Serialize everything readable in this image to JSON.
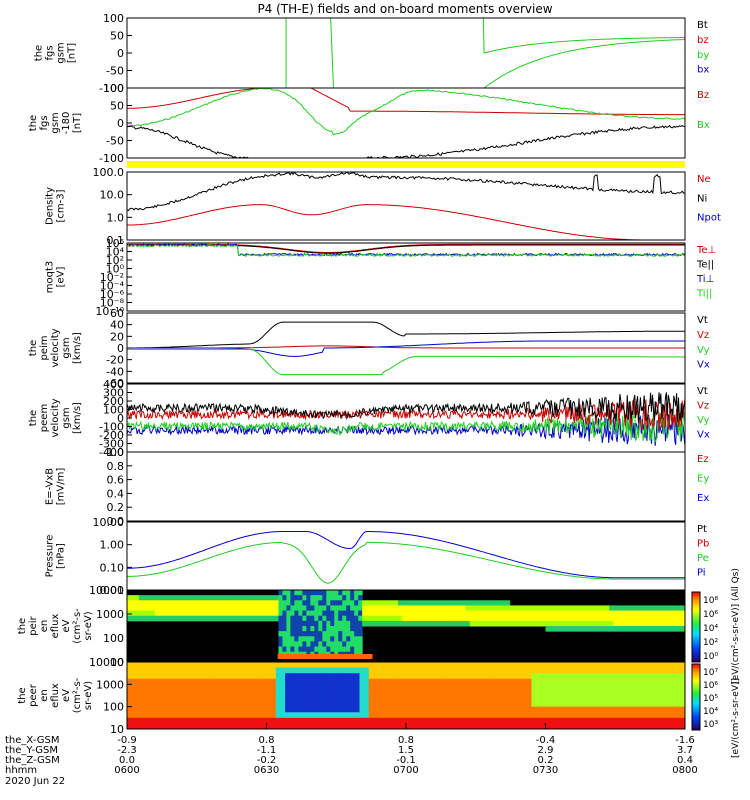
{
  "title": "P4 (TH-E) fields and on-board moments overview",
  "colors": {
    "black": "#000000",
    "red": "#cc0000",
    "green": "#22cc22",
    "blue": "#0000cc",
    "yellow": "#ffff00"
  },
  "chart_data": [
    {
      "type": "line",
      "ylabel": [
        "the",
        "fgs",
        "gsm",
        "[nT]"
      ],
      "yticks": [
        "100",
        "50",
        "0",
        "-50",
        "-100"
      ],
      "ylim": [
        -100,
        100
      ],
      "legend": [
        {
          "name": "Bt",
          "color": "#000000"
        },
        {
          "name": "bz",
          "color": "#cc0000"
        },
        {
          "name": "by",
          "color": "#22cc22"
        },
        {
          "name": "bx",
          "color": "#0000cc"
        }
      ]
    },
    {
      "type": "line",
      "ylabel": [
        "the",
        "fgs",
        "gsm",
        "-180",
        "[nT]"
      ],
      "yticks": [
        "100",
        "50",
        "0",
        "-50",
        "-100"
      ],
      "ylim": [
        -125,
        125
      ],
      "legend": [
        {
          "name": "Bz",
          "color": "#cc0000"
        },
        {
          "name": "Bx",
          "color": "#22cc22"
        }
      ]
    },
    {
      "type": "line",
      "ylabel": [
        "Density",
        "[cm-3]"
      ],
      "yticks": [
        "100.0",
        "10.0",
        "1.0",
        "0.1"
      ],
      "scale": "log",
      "legend": [
        {
          "name": "Ne",
          "color": "#cc0000"
        },
        {
          "name": "Ni",
          "color": "#000000"
        },
        {
          "name": "Npot",
          "color": "#0000cc"
        }
      ]
    },
    {
      "type": "line",
      "ylabel": [
        "moqt3",
        "[eV]"
      ],
      "yticks": [
        "10⁶",
        "10⁴",
        "10²",
        "10⁰",
        "10⁻²",
        "10⁻⁴",
        "10⁻⁶",
        "10⁻⁸",
        "10⁻¹⁰"
      ],
      "scale": "log",
      "legend": [
        {
          "name": "Te⊥",
          "color": "#cc0000"
        },
        {
          "name": "Te||",
          "color": "#000000"
        },
        {
          "name": "Ti⊥",
          "color": "#0000cc"
        },
        {
          "name": "Ti||",
          "color": "#22cc22"
        }
      ]
    },
    {
      "type": "line",
      "ylabel": [
        "the",
        "peim",
        "velocity",
        "gsm",
        "[km/s]"
      ],
      "yticks": [
        "60",
        "40",
        "20",
        "0",
        "-20",
        "-40",
        "-60"
      ],
      "ylim": [
        -60,
        60
      ],
      "legend": [
        {
          "name": "Vt",
          "color": "#000000"
        },
        {
          "name": "Vz",
          "color": "#cc0000"
        },
        {
          "name": "Vy",
          "color": "#22cc22"
        },
        {
          "name": "Vx",
          "color": "#0000cc"
        }
      ]
    },
    {
      "type": "line",
      "ylabel": [
        "the",
        "peem",
        "velocity",
        "gsm",
        "[km/s]"
      ],
      "yticks": [
        "400",
        "300",
        "200",
        "100",
        "0",
        "-100",
        "-200",
        "-300",
        "-400"
      ],
      "ylim": [
        -400,
        400
      ],
      "legend": [
        {
          "name": "Vt",
          "color": "#000000"
        },
        {
          "name": "Vz",
          "color": "#cc0000"
        },
        {
          "name": "Vy",
          "color": "#22cc22"
        },
        {
          "name": "Vx",
          "color": "#0000cc"
        }
      ]
    },
    {
      "type": "line",
      "ylabel": [
        "E=-VxB",
        "[mV/m]"
      ],
      "yticks": [
        "1.0",
        "0.8",
        "0.6",
        "0.4",
        "0.2",
        "0.0"
      ],
      "ylim": [
        0,
        1
      ],
      "legend": [
        {
          "name": "Ez",
          "color": "#cc0000"
        },
        {
          "name": "Ey",
          "color": "#22cc22"
        },
        {
          "name": "Ex",
          "color": "#0000cc"
        }
      ]
    },
    {
      "type": "line",
      "ylabel": [
        "Pressure",
        "[nPa]"
      ],
      "yticks": [
        "10.00",
        "1.00",
        "0.10",
        "0.01"
      ],
      "scale": "log",
      "legend": [
        {
          "name": "Pt",
          "color": "#000000"
        },
        {
          "name": "Pb",
          "color": "#cc0000"
        },
        {
          "name": "Pe",
          "color": "#22cc22"
        },
        {
          "name": "Pi",
          "color": "#0000cc"
        }
      ]
    },
    {
      "type": "heatmap",
      "ylabel": [
        "the",
        "peir",
        "en",
        "eflux",
        "eV",
        "(cm²-s-",
        "sr-eV)"
      ],
      "yticks": [
        "10000",
        "1000",
        "100",
        "10"
      ]
    },
    {
      "type": "heatmap",
      "ylabel": [
        "the",
        "peer",
        "en",
        "eflux",
        "eV",
        "(cm²-s-",
        "sr-eV)"
      ],
      "yticks": [
        "10000",
        "1000",
        "100",
        "10"
      ]
    }
  ],
  "colorbar": {
    "top_ticks": [
      "10⁸",
      "10⁶",
      "10⁴",
      "10²",
      "10⁰"
    ],
    "bottom_ticks": [
      "10⁷",
      "10⁶",
      "10⁵",
      "10⁴",
      "10³"
    ],
    "label_top": "[eV/(cm²-s-sr-eV)] (All Qs)",
    "label_bottom": "[eV/(cm²-s-sr-eV)]"
  },
  "xaxis": {
    "rows": [
      {
        "label": "the_X-GSM",
        "values": [
          "-0.9",
          "0.8",
          "0.8",
          "-0.4",
          "-1.6"
        ]
      },
      {
        "label": "the_Y-GSM",
        "values": [
          "-2.3",
          "-1.1",
          "1.5",
          "2.9",
          "3.7"
        ]
      },
      {
        "label": "the_Z-GSM",
        "values": [
          "0.0",
          "-0.2",
          "-0.1",
          "0.2",
          "0.4"
        ]
      },
      {
        "label": "hhmm",
        "values": [
          "0600",
          "0630",
          "0700",
          "0730",
          "0800"
        ]
      }
    ],
    "date": "2020 Jun 22"
  }
}
